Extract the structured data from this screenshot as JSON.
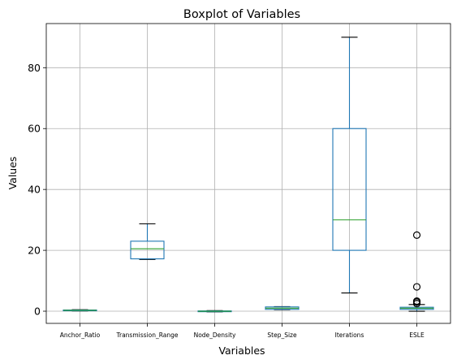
{
  "chart_data": {
    "type": "boxplot",
    "title": "Boxplot of Variables",
    "xlabel": "Variables",
    "ylabel": "Values",
    "ylim": [
      -4,
      94.5
    ],
    "yticks": [
      0,
      20,
      40,
      60,
      80
    ],
    "grid": true,
    "colors": {
      "box": "#1f77b4",
      "median": "#2ca02c",
      "whisker": "#000000",
      "grid": "#b0b0b0",
      "flier": "#000000"
    },
    "categories": [
      "Anchor_Ratio",
      "Transmission_Range",
      "Node_Density",
      "Step_Size",
      "Iterations",
      "ESLE"
    ],
    "boxes": [
      {
        "name": "Anchor_Ratio",
        "whislo": 0.1,
        "q1": 0.2,
        "med": 0.3,
        "q3": 0.4,
        "whishi": 0.5,
        "fliers": []
      },
      {
        "name": "Transmission_Range",
        "whislo": 17.0,
        "q1": 17.2,
        "med": 20.5,
        "q3": 23.0,
        "whishi": 28.7,
        "fliers": []
      },
      {
        "name": "Node_Density",
        "whislo": -0.2,
        "q1": -0.1,
        "med": 0.0,
        "q3": 0.1,
        "whishi": 0.2,
        "fliers": []
      },
      {
        "name": "Step_Size",
        "whislo": 0.5,
        "q1": 0.6,
        "med": 1.0,
        "q3": 1.4,
        "whishi": 1.5,
        "fliers": []
      },
      {
        "name": "Iterations",
        "whislo": 6.0,
        "q1": 20.0,
        "med": 30.0,
        "q3": 60.0,
        "whishi": 90.0,
        "fliers": []
      },
      {
        "name": "ESLE",
        "whislo": 0.0,
        "q1": 0.6,
        "med": 1.0,
        "q3": 1.3,
        "whishi": 2.2,
        "fliers": [
          2.5,
          3.0,
          3.3,
          8.0,
          25.0
        ]
      }
    ]
  }
}
